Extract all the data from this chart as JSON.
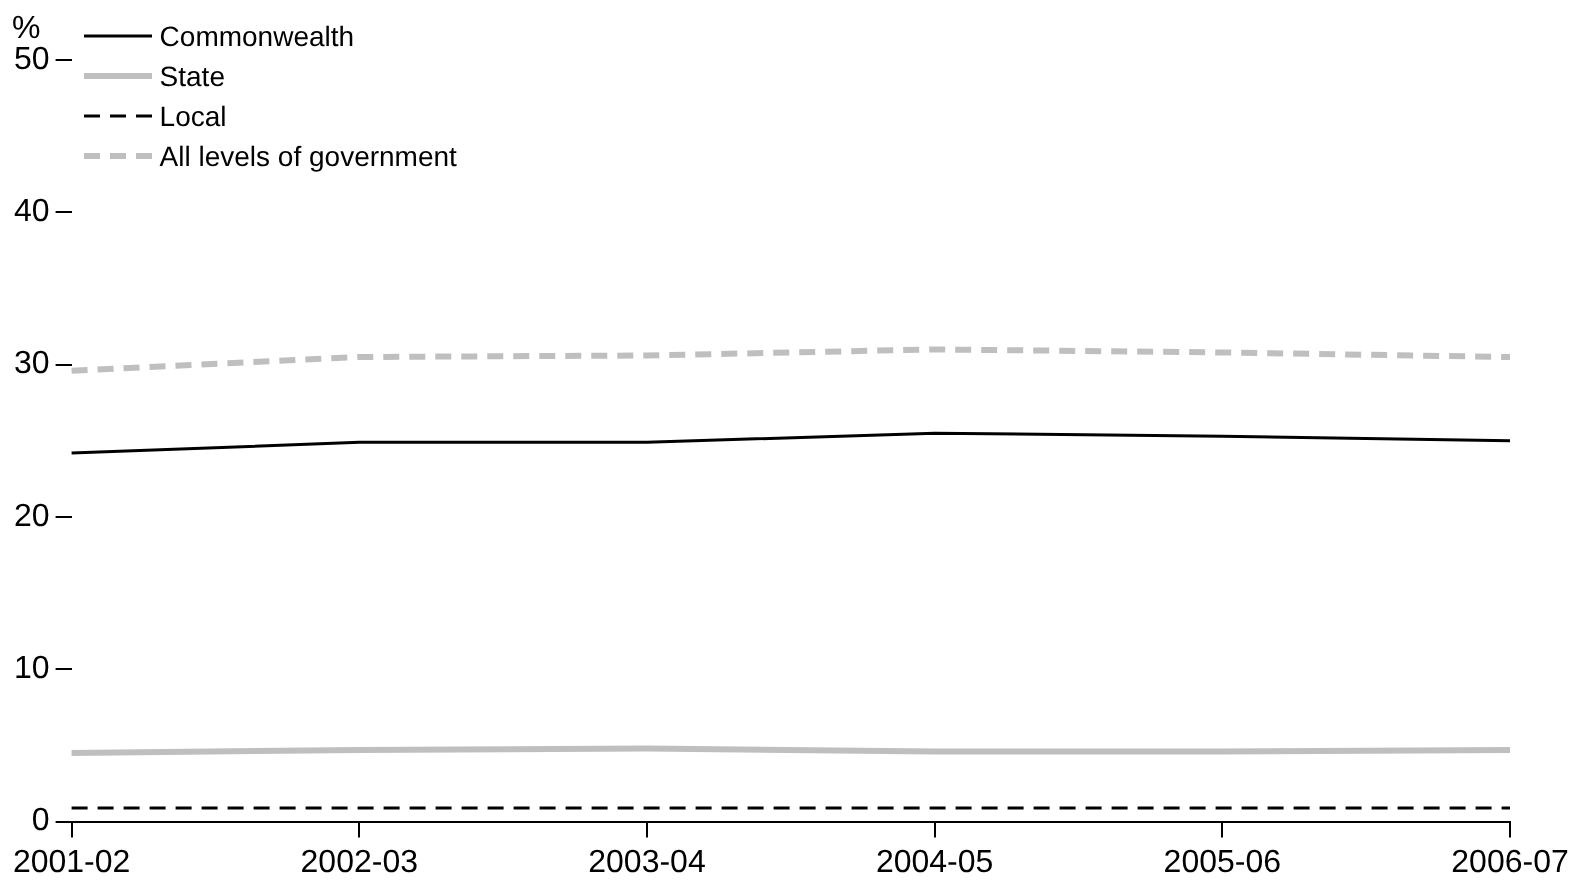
{
  "chart_data": {
    "type": "line",
    "ylabel": "%",
    "categories": [
      "2001-02",
      "2002-03",
      "2003-04",
      "2004-05",
      "2005-06",
      "2006-07"
    ],
    "series": [
      {
        "name": "Commonwealth",
        "color": "#000000",
        "line_style": "solid",
        "values": [
          24.2,
          24.9,
          24.9,
          25.5,
          25.3,
          25.0
        ]
      },
      {
        "name": "State",
        "color": "#bfbfbf",
        "line_style": "solid",
        "values": [
          4.5,
          4.7,
          4.8,
          4.6,
          4.6,
          4.7
        ]
      },
      {
        "name": "Local",
        "color": "#000000",
        "line_style": "dashed",
        "values": [
          0.9,
          0.9,
          0.9,
          0.9,
          0.9,
          0.9
        ]
      },
      {
        "name": "All levels of government",
        "color": "#bfbfbf",
        "line_style": "dashed",
        "values": [
          29.6,
          30.5,
          30.6,
          31.0,
          30.8,
          30.5
        ]
      }
    ],
    "ylim": [
      0,
      50
    ],
    "yticks": [
      0,
      10,
      20,
      30,
      40,
      50
    ],
    "grid": false,
    "legend": "top left",
    "marker": "none"
  }
}
